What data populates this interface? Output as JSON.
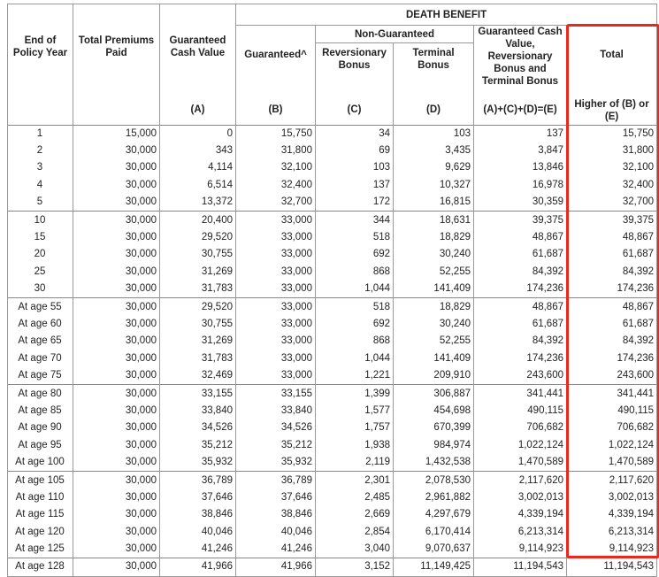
{
  "headers": {
    "death_benefit": "DEATH BENEFIT",
    "non_guaranteed": "Non-Guaranteed",
    "end_of_policy_year": "End of Policy Year",
    "total_premiums_paid": "Total Premiums Paid",
    "guaranteed_cash_value": "Guaranteed Cash Value",
    "guaranteed": "Guaranteed^",
    "reversionary_bonus": "Reversionary Bonus",
    "terminal_bonus": "Terminal Bonus",
    "combined": "Guaranteed Cash Value, Reversionary Bonus and Terminal Bonus",
    "total": "Total",
    "label_a": "(A)",
    "label_b": "(B)",
    "label_c": "(C)",
    "label_d": "(D)",
    "label_e": "(A)+(C)+(D)=(E)",
    "label_total": "Higher of (B) or (E)"
  },
  "highlight_color": "#e8291c",
  "groups": [
    [
      [
        "1",
        "15,000",
        "0",
        "15,750",
        "34",
        "103",
        "137",
        "15,750"
      ],
      [
        "2",
        "30,000",
        "343",
        "31,800",
        "69",
        "3,435",
        "3,847",
        "31,800"
      ],
      [
        "3",
        "30,000",
        "4,114",
        "32,100",
        "103",
        "9,629",
        "13,846",
        "32,100"
      ],
      [
        "4",
        "30,000",
        "6,514",
        "32,400",
        "137",
        "10,327",
        "16,978",
        "32,400"
      ],
      [
        "5",
        "30,000",
        "13,372",
        "32,700",
        "172",
        "16,815",
        "30,359",
        "32,700"
      ]
    ],
    [
      [
        "10",
        "30,000",
        "20,400",
        "33,000",
        "344",
        "18,631",
        "39,375",
        "39,375"
      ],
      [
        "15",
        "30,000",
        "29,520",
        "33,000",
        "518",
        "18,829",
        "48,867",
        "48,867"
      ],
      [
        "20",
        "30,000",
        "30,755",
        "33,000",
        "692",
        "30,240",
        "61,687",
        "61,687"
      ],
      [
        "25",
        "30,000",
        "31,269",
        "33,000",
        "868",
        "52,255",
        "84,392",
        "84,392"
      ],
      [
        "30",
        "30,000",
        "31,783",
        "33,000",
        "1,044",
        "141,409",
        "174,236",
        "174,236"
      ]
    ],
    [
      [
        "At age 55",
        "30,000",
        "29,520",
        "33,000",
        "518",
        "18,829",
        "48,867",
        "48,867"
      ],
      [
        "At age 60",
        "30,000",
        "30,755",
        "33,000",
        "692",
        "30,240",
        "61,687",
        "61,687"
      ],
      [
        "At age 65",
        "30,000",
        "31,269",
        "33,000",
        "868",
        "52,255",
        "84,392",
        "84,392"
      ],
      [
        "At age 70",
        "30,000",
        "31,783",
        "33,000",
        "1,044",
        "141,409",
        "174,236",
        "174,236"
      ],
      [
        "At age 75",
        "30,000",
        "32,469",
        "33,000",
        "1,221",
        "209,910",
        "243,600",
        "243,600"
      ]
    ],
    [
      [
        "At age 80",
        "30,000",
        "33,155",
        "33,155",
        "1,399",
        "306,887",
        "341,441",
        "341,441"
      ],
      [
        "At age 85",
        "30,000",
        "33,840",
        "33,840",
        "1,577",
        "454,698",
        "490,115",
        "490,115"
      ],
      [
        "At age 90",
        "30,000",
        "34,526",
        "34,526",
        "1,757",
        "670,399",
        "706,682",
        "706,682"
      ],
      [
        "At age 95",
        "30,000",
        "35,212",
        "35,212",
        "1,938",
        "984,974",
        "1,022,124",
        "1,022,124"
      ],
      [
        "At age 100",
        "30,000",
        "35,932",
        "35,932",
        "2,119",
        "1,432,538",
        "1,470,589",
        "1,470,589"
      ]
    ],
    [
      [
        "At age 105",
        "30,000",
        "36,789",
        "36,789",
        "2,301",
        "2,078,530",
        "2,117,620",
        "2,117,620"
      ],
      [
        "At age 110",
        "30,000",
        "37,646",
        "37,646",
        "2,485",
        "2,961,882",
        "3,002,013",
        "3,002,013"
      ],
      [
        "At age 115",
        "30,000",
        "38,846",
        "38,846",
        "2,669",
        "4,297,679",
        "4,339,194",
        "4,339,194"
      ],
      [
        "At age 120",
        "30,000",
        "40,046",
        "40,046",
        "2,854",
        "6,170,414",
        "6,213,314",
        "6,213,314"
      ],
      [
        "At age 125",
        "30,000",
        "41,246",
        "41,246",
        "3,040",
        "9,070,637",
        "9,114,923",
        "9,114,923"
      ]
    ],
    [
      [
        "At age 128",
        "30,000",
        "41,966",
        "41,966",
        "3,152",
        "11,149,425",
        "11,194,543",
        "11,194,543"
      ]
    ]
  ]
}
